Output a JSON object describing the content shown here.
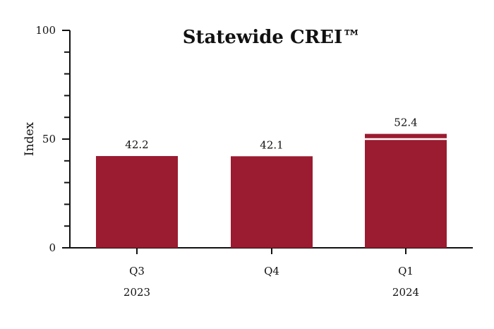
{
  "chart_data": {
    "type": "bar",
    "title": "Statewide CREI™",
    "ylabel": "Index",
    "xlabel": "",
    "ylim": [
      0,
      100
    ],
    "yticks": [
      0,
      50,
      100
    ],
    "minor_tick_step": 10,
    "categories": [
      "Q3",
      "Q4",
      "Q1"
    ],
    "year_labels": [
      "2023",
      "",
      "2024"
    ],
    "values": [
      42.2,
      42.1,
      52.4
    ],
    "value_labels": [
      "42.2",
      "42.1",
      "52.4"
    ],
    "reference_line": {
      "category": "Q1",
      "value": 50,
      "color": "#ffffff"
    },
    "bar_color": "#9b1b30",
    "grid": false,
    "legend": "none"
  }
}
